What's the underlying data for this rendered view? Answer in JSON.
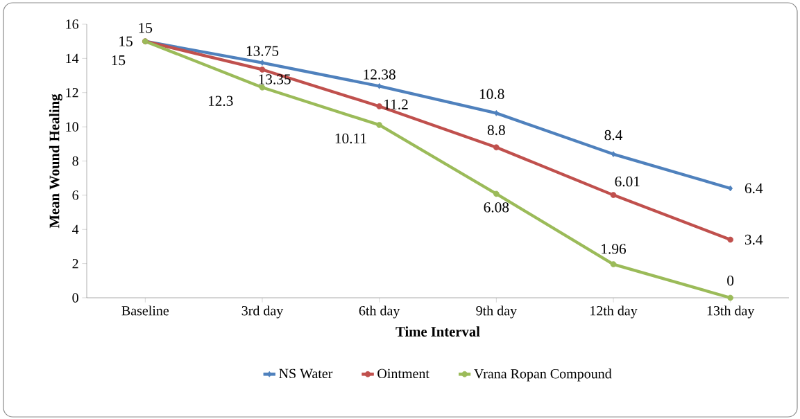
{
  "chart_data": {
    "type": "line",
    "xlabel": "Time Interval",
    "ylabel": "Mean Wound Healing",
    "categories": [
      "Baseline",
      "3rd day",
      "6th day",
      "9th day",
      "12th day",
      "13th day"
    ],
    "ylim": [
      0,
      16
    ],
    "yticks": [
      0,
      2,
      4,
      6,
      8,
      10,
      12,
      14,
      16
    ],
    "grid": false,
    "legend": "bottom",
    "line_style": "solid",
    "series": [
      {
        "name": "NS Water",
        "color": "#4f81bd",
        "marker": "diamond",
        "values": [
          15,
          13.75,
          12.38,
          10.8,
          8.4,
          6.4
        ],
        "value_labels": [
          "15",
          "13.75",
          "12.38",
          "10.8",
          "8.4",
          "6.4"
        ]
      },
      {
        "name": "Ointment",
        "color": "#c0504d",
        "marker": "circle",
        "values": [
          15,
          13.35,
          11.2,
          8.8,
          6.01,
          3.4
        ],
        "value_labels": [
          "15",
          "13.35",
          "11.2",
          "8.8",
          "6.01",
          "3.4"
        ]
      },
      {
        "name": "Vrana Ropan Compound",
        "color": "#9bbb59",
        "marker": "circle",
        "values": [
          15,
          12.3,
          10.11,
          6.08,
          1.96,
          0
        ],
        "value_labels": [
          "15",
          "12.3",
          "10.11",
          "6.08",
          "1.96",
          "0"
        ]
      }
    ]
  }
}
